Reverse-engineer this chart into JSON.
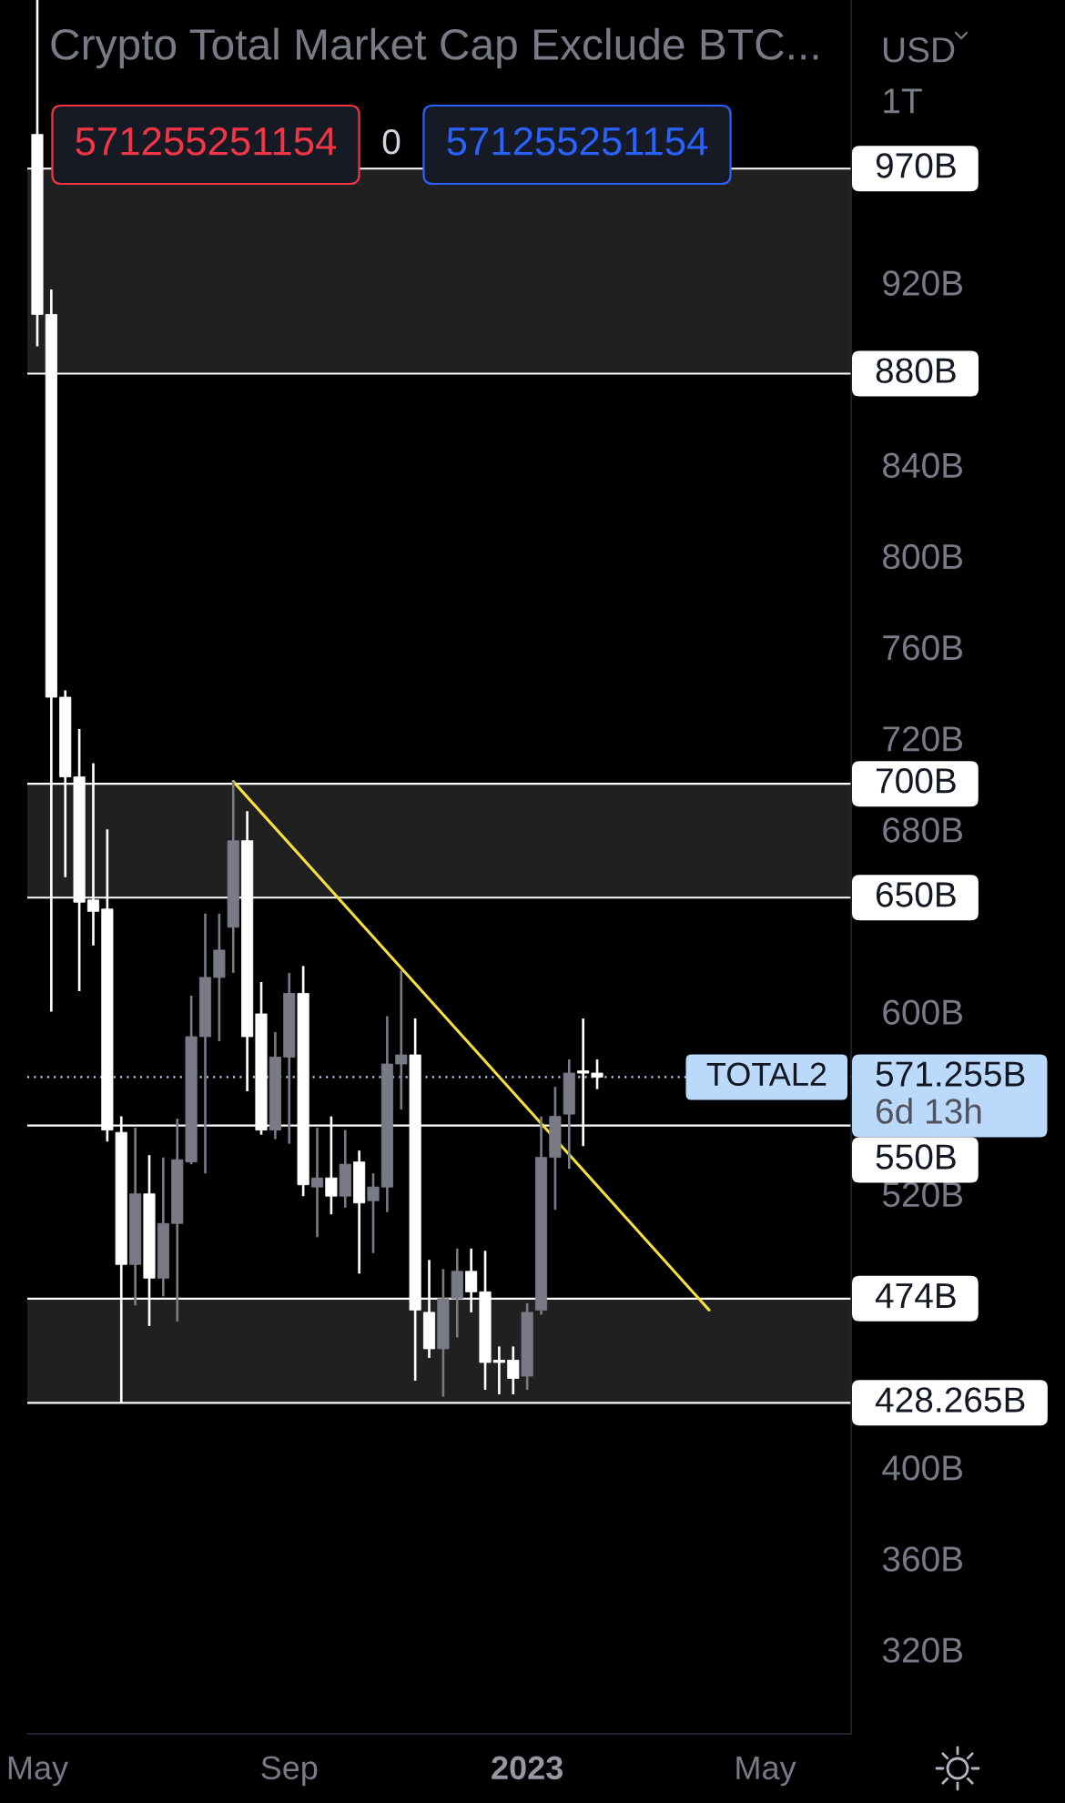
{
  "chart_data": {
    "type": "candlestick",
    "title": "Crypto Total Market Cap Exclude BTC...",
    "ylabel": "USD",
    "xlim": [
      "2022-04-27",
      "2023-06-13"
    ],
    "xticks": [
      {
        "value": "2022-05-02",
        "label": "May"
      },
      {
        "value": "2022-09-05",
        "label": "Sep"
      },
      {
        "value": "2023-01-02",
        "label": "2023"
      },
      {
        "value": "2023-05-01",
        "label": "May"
      }
    ],
    "ylim": [
      283000000000,
      1044000000000
    ],
    "yticks": [
      {
        "value": 1000000000000,
        "label": "1T"
      },
      {
        "value": 920000000000,
        "label": "920B"
      },
      {
        "value": 840000000000,
        "label": "840B"
      },
      {
        "value": 800000000000,
        "label": "800B"
      },
      {
        "value": 760000000000,
        "label": "760B"
      },
      {
        "value": 720000000000,
        "label": "720B"
      },
      {
        "value": 680000000000,
        "label": "680B"
      },
      {
        "value": 600000000000,
        "label": "600B"
      },
      {
        "value": 520000000000,
        "label": "520B"
      },
      {
        "value": 400000000000,
        "label": "400B"
      },
      {
        "value": 360000000000,
        "label": "360B"
      },
      {
        "value": 320000000000,
        "label": "320B"
      }
    ],
    "grid": false,
    "series": [
      {
        "x": [
          "2022-05-02",
          "2022-05-09",
          "2022-05-16",
          "2022-05-23",
          "2022-05-30",
          "2022-06-06",
          "2022-06-13",
          "2022-06-20",
          "2022-06-27",
          "2022-07-04",
          "2022-07-11",
          "2022-07-18",
          "2022-07-25",
          "2022-08-01",
          "2022-08-08",
          "2022-08-15",
          "2022-08-22",
          "2022-08-29",
          "2022-09-05",
          "2022-09-12",
          "2022-09-19",
          "2022-09-26",
          "2022-10-03",
          "2022-10-10",
          "2022-10-17",
          "2022-10-24",
          "2022-10-31",
          "2022-11-07",
          "2022-11-14",
          "2022-11-21",
          "2022-11-28",
          "2022-12-05",
          "2022-12-12",
          "2022-12-19",
          "2022-12-26",
          "2023-01-02",
          "2023-01-09",
          "2023-01-16",
          "2023-01-23",
          "2023-01-30",
          "2023-02-06"
        ],
        "ohlc": [
          [
            985000000000,
            1044000000000,
            892000000000,
            906000000000
          ],
          [
            906000000000,
            917000000000,
            600000000000,
            738000000000
          ],
          [
            738000000000,
            741000000000,
            659000000000,
            703000000000
          ],
          [
            703000000000,
            724000000000,
            609000000000,
            648000000000
          ],
          [
            649000000000,
            709000000000,
            629000000000,
            644000000000
          ],
          [
            645000000000,
            680000000000,
            543000000000,
            548000000000
          ],
          [
            547000000000,
            554000000000,
            428265000000,
            489000000000
          ],
          [
            489000000000,
            549000000000,
            471000000000,
            520000000000
          ],
          [
            520000000000,
            537000000000,
            462000000000,
            483000000000
          ],
          [
            483000000000,
            536000000000,
            475000000000,
            507000000000
          ],
          [
            507000000000,
            553000000000,
            464000000000,
            535000000000
          ],
          [
            534000000000,
            607000000000,
            533000000000,
            589000000000
          ],
          [
            589000000000,
            643000000000,
            529000000000,
            615000000000
          ],
          [
            615000000000,
            643000000000,
            587000000000,
            627000000000
          ],
          [
            637000000000,
            701000000000,
            617000000000,
            675000000000
          ],
          [
            675000000000,
            688000000000,
            565000000000,
            589000000000
          ],
          [
            599000000000,
            613000000000,
            546000000000,
            548000000000
          ],
          [
            548000000000,
            591000000000,
            544000000000,
            580000000000
          ],
          [
            580000000000,
            617000000000,
            542000000000,
            608000000000
          ],
          [
            608000000000,
            620000000000,
            519000000000,
            524000000000
          ],
          [
            523000000000,
            549000000000,
            501000000000,
            527000000000
          ],
          [
            527000000000,
            554000000000,
            511000000000,
            519000000000
          ],
          [
            519000000000,
            548000000000,
            514000000000,
            533000000000
          ],
          [
            534000000000,
            539000000000,
            485000000000,
            516000000000
          ],
          [
            517000000000,
            529000000000,
            494000000000,
            523000000000
          ],
          [
            523000000000,
            598000000000,
            512000000000,
            577000000000
          ],
          [
            577000000000,
            618000000000,
            557000000000,
            581000000000
          ],
          [
            581000000000,
            597000000000,
            438000000000,
            469000000000
          ],
          [
            468000000000,
            491000000000,
            448000000000,
            452000000000
          ],
          [
            452000000000,
            487000000000,
            431000000000,
            474000000000
          ],
          [
            474000000000,
            496000000000,
            457000000000,
            486000000000
          ],
          [
            486000000000,
            496000000000,
            468000000000,
            477000000000
          ],
          [
            477000000000,
            495000000000,
            434000000000,
            446000000000
          ],
          [
            447000000000,
            453000000000,
            432000000000,
            446000000000
          ],
          [
            447000000000,
            453000000000,
            432000000000,
            439000000000
          ],
          [
            440000000000,
            472000000000,
            434000000000,
            468000000000
          ],
          [
            469000000000,
            554000000000,
            467000000000,
            536000000000
          ],
          [
            536000000000,
            567000000000,
            513000000000,
            554000000000
          ],
          [
            555000000000,
            579000000000,
            531000000000,
            573000000000
          ],
          [
            574000000000,
            597000000000,
            541000000000,
            573000000000
          ],
          [
            573000000000,
            579000000000,
            566000000000,
            571255251154
          ]
        ],
        "colors": [
          "#ffffff",
          "#ffffff",
          "#ffffff",
          "#ffffff",
          "#ffffff",
          "#ffffff",
          "#ffffff",
          "#787b86",
          "#ffffff",
          "#787b86",
          "#787b86",
          "#787b86",
          "#787b86",
          "#787b86",
          "#787b86",
          "#ffffff",
          "#ffffff",
          "#787b86",
          "#787b86",
          "#ffffff",
          "#787b86",
          "#ffffff",
          "#787b86",
          "#ffffff",
          "#787b86",
          "#787b86",
          "#787b86",
          "#ffffff",
          "#ffffff",
          "#787b86",
          "#787b86",
          "#ffffff",
          "#ffffff",
          "#ffffff",
          "#ffffff",
          "#787b86",
          "#787b86",
          "#787b86",
          "#787b86",
          "#ffffff",
          "#ffffff"
        ]
      },
      {
        "type": "line",
        "x": [
          "2022-08-08",
          "2023-04-03"
        ],
        "values": [
          701000000000,
          469000000000
        ],
        "color": "#f7e03c"
      }
    ],
    "ref_lines": [
      {
        "axis": "y",
        "value": 970000000000,
        "label": "970B",
        "color": "#ffffff"
      },
      {
        "axis": "y",
        "value": 880000000000,
        "label": "880B",
        "color": "#ffffff"
      },
      {
        "axis": "y",
        "value": 700000000000,
        "label": "700B",
        "color": "#ffffff"
      },
      {
        "axis": "y",
        "value": 650000000000,
        "label": "650B",
        "color": "#ffffff"
      },
      {
        "axis": "y",
        "value": 571255251154,
        "label": "571.255B",
        "color": "#bbd9fb",
        "line_style": "dotted"
      },
      {
        "axis": "y",
        "value": 550000000000,
        "label": "550B",
        "color": "#ffffff"
      },
      {
        "axis": "y",
        "value": 474000000000,
        "label": "474B",
        "color": "#ffffff"
      },
      {
        "axis": "y",
        "value": 428265000000,
        "label": "428.265B",
        "color": "#ffffff"
      }
    ],
    "bands": [
      {
        "axis": "y",
        "from": 880000000000,
        "to": 970000000000,
        "color": "#202020"
      },
      {
        "axis": "y",
        "from": 650000000000,
        "to": 700000000000,
        "color": "#202020"
      },
      {
        "axis": "y",
        "from": 428265000000,
        "to": 474000000000,
        "color": "#202020"
      }
    ],
    "annotations": [
      "571255251154",
      "0",
      "571255251154",
      "TOTAL2",
      "6d 13h"
    ]
  }
}
